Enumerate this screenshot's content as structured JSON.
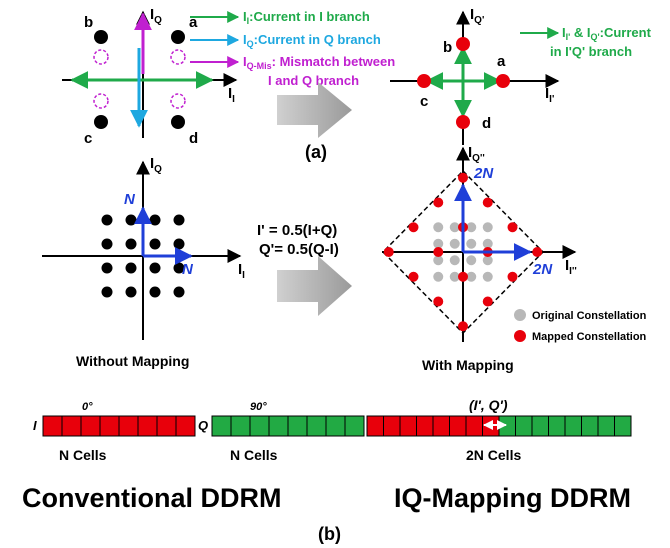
{
  "panel_a": {
    "left": {
      "axis_x": "I",
      "axis_x_sub": "I",
      "axis_y": "I",
      "axis_y_sub": "Q",
      "labels": {
        "b": "b",
        "a": "a",
        "c": "c",
        "d": "d"
      }
    },
    "legend": {
      "i_main": "I",
      "i_sub": "I",
      "i_text": ":Current in I branch",
      "q_main": "I",
      "q_sub": "Q",
      "q_text": ":Current in Q branch",
      "mis_main": "I",
      "mis_sub": "Q-Mis",
      "mis_text": ": Mismatch between",
      "mis_text2": "I and Q branch"
    },
    "right": {
      "axis_x": "I",
      "axis_x_sub": "I'",
      "axis_y": "I",
      "axis_y_sub": "Q'",
      "labels": {
        "b": "b",
        "a": "a",
        "c": "c",
        "d": "d"
      },
      "legend_line1_a": "I",
      "legend_line1_sub1": "I'",
      "legend_line1_b": " & I",
      "legend_line1_sub2": "Q'",
      "legend_line1_c": ":Current",
      "legend_line2": "in I'Q' branch"
    },
    "caption": "(a)",
    "colors": {
      "green": "#1faa4a",
      "blue": "#1ea8e0",
      "magenta": "#c020d0"
    }
  },
  "panel_b": {
    "left": {
      "axis_x": "I",
      "axis_x_sub": "I",
      "axis_y": "I",
      "axis_y_sub": "Q",
      "n_up": "N",
      "n_right": "N",
      "caption": "Without Mapping"
    },
    "equations": {
      "line1": "I' = 0.5(I+Q)",
      "line2": "Q'= 0.5(Q-I)"
    },
    "right": {
      "axis_x": "I",
      "axis_x_sub": "I''",
      "axis_y": "I",
      "axis_y_sub": "Q''",
      "n_up": "2N",
      "n_right": "2N",
      "legend_original": "Original Constellation",
      "legend_mapped": "Mapped Constellation",
      "caption": "With Mapping"
    },
    "cells": {
      "i_label": "I",
      "i_angle": "0°",
      "i_caption": "N Cells",
      "q_label": "Q",
      "q_angle": "90°",
      "q_caption": "N Cells",
      "iq_label": "(I', Q')",
      "iq_caption": "2N Cells"
    },
    "title_left": "Conventional DDRM",
    "title_right": "IQ-Mapping DDRM",
    "caption": "(b)",
    "colors": {
      "red": "#e8000b",
      "green": "#22aa44",
      "blue": "#1f3fd8",
      "gray": "#b8b8b8"
    }
  }
}
